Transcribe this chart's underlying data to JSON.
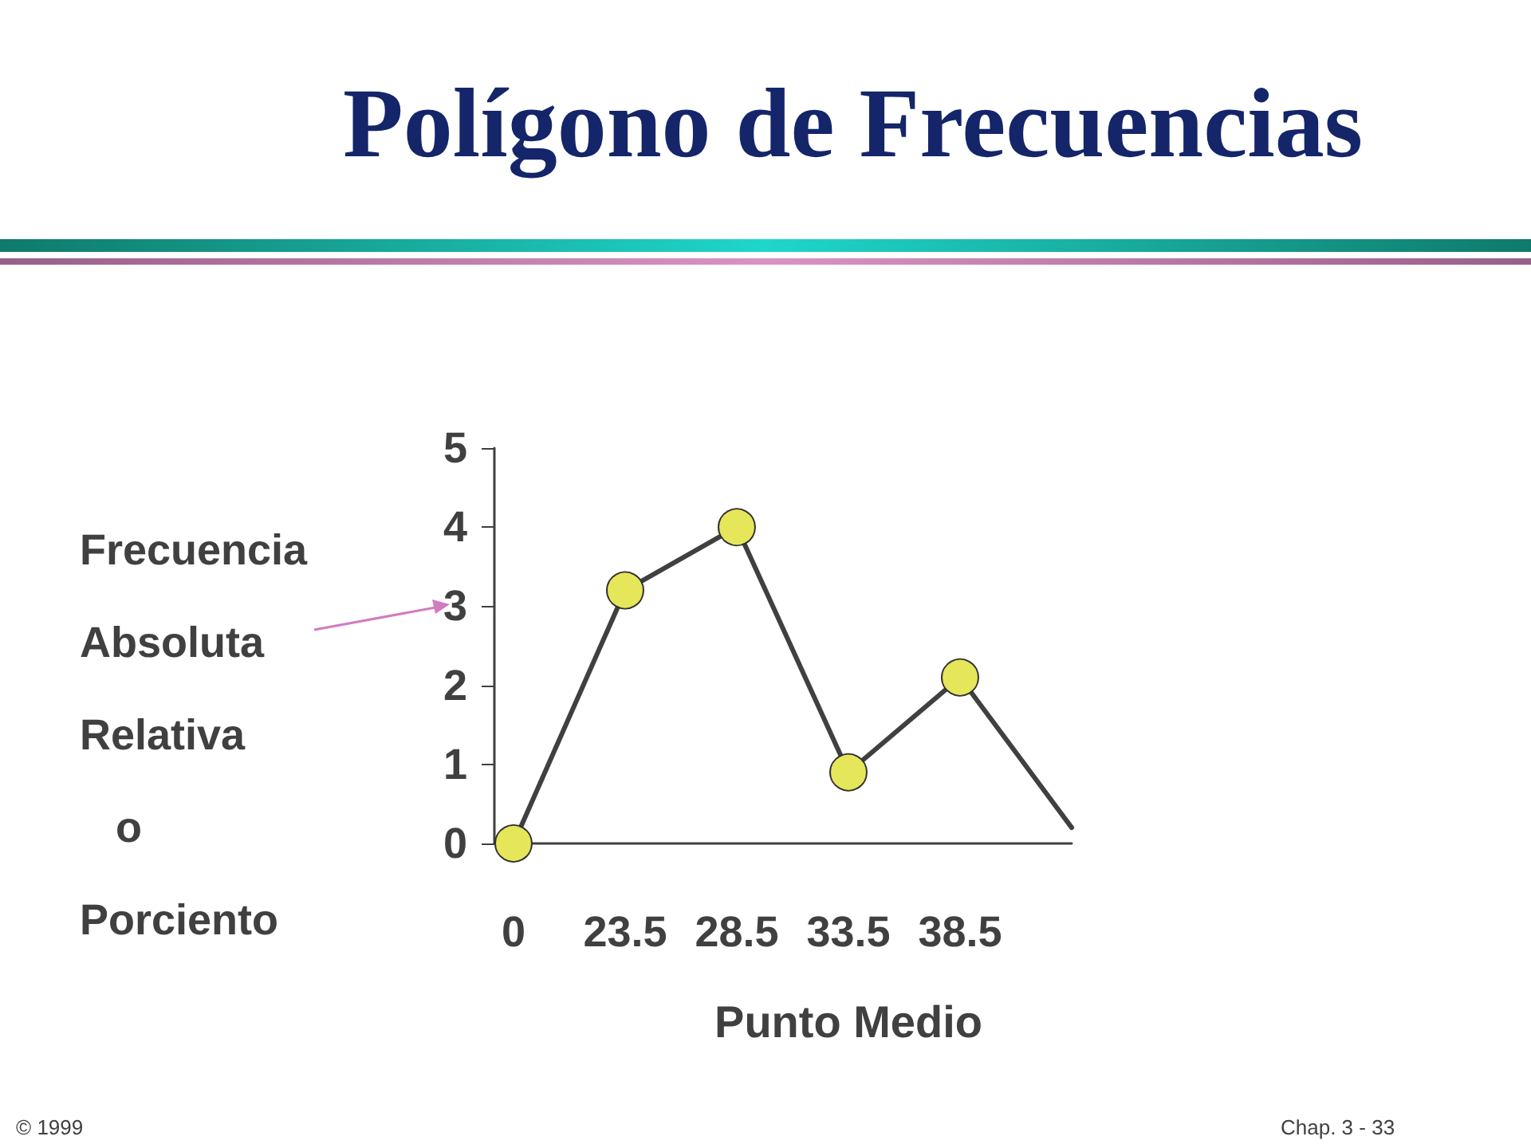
{
  "chart_data": {
    "type": "line",
    "title": "Polígono de Frecuencias",
    "xlabel": "Punto Medio",
    "ylabel": "Frecuencia\nAbsoluta\nRelativa\n   o\nPorciento",
    "categories": [
      "0",
      "23.5",
      "28.5",
      "33.5",
      "38.5",
      null
    ],
    "series": [
      {
        "color": "#404040",
        "values": [
          0,
          3.2,
          4,
          0.9,
          2.1,
          0.2
        ]
      }
    ],
    "ylim": [
      0,
      5
    ],
    "yticks": [
      0,
      1,
      2,
      3,
      4,
      5
    ],
    "marker": "circle",
    "line_style": "solid",
    "annotations": [
      "© 1999",
      "Chap. 3 - 33"
    ]
  }
}
